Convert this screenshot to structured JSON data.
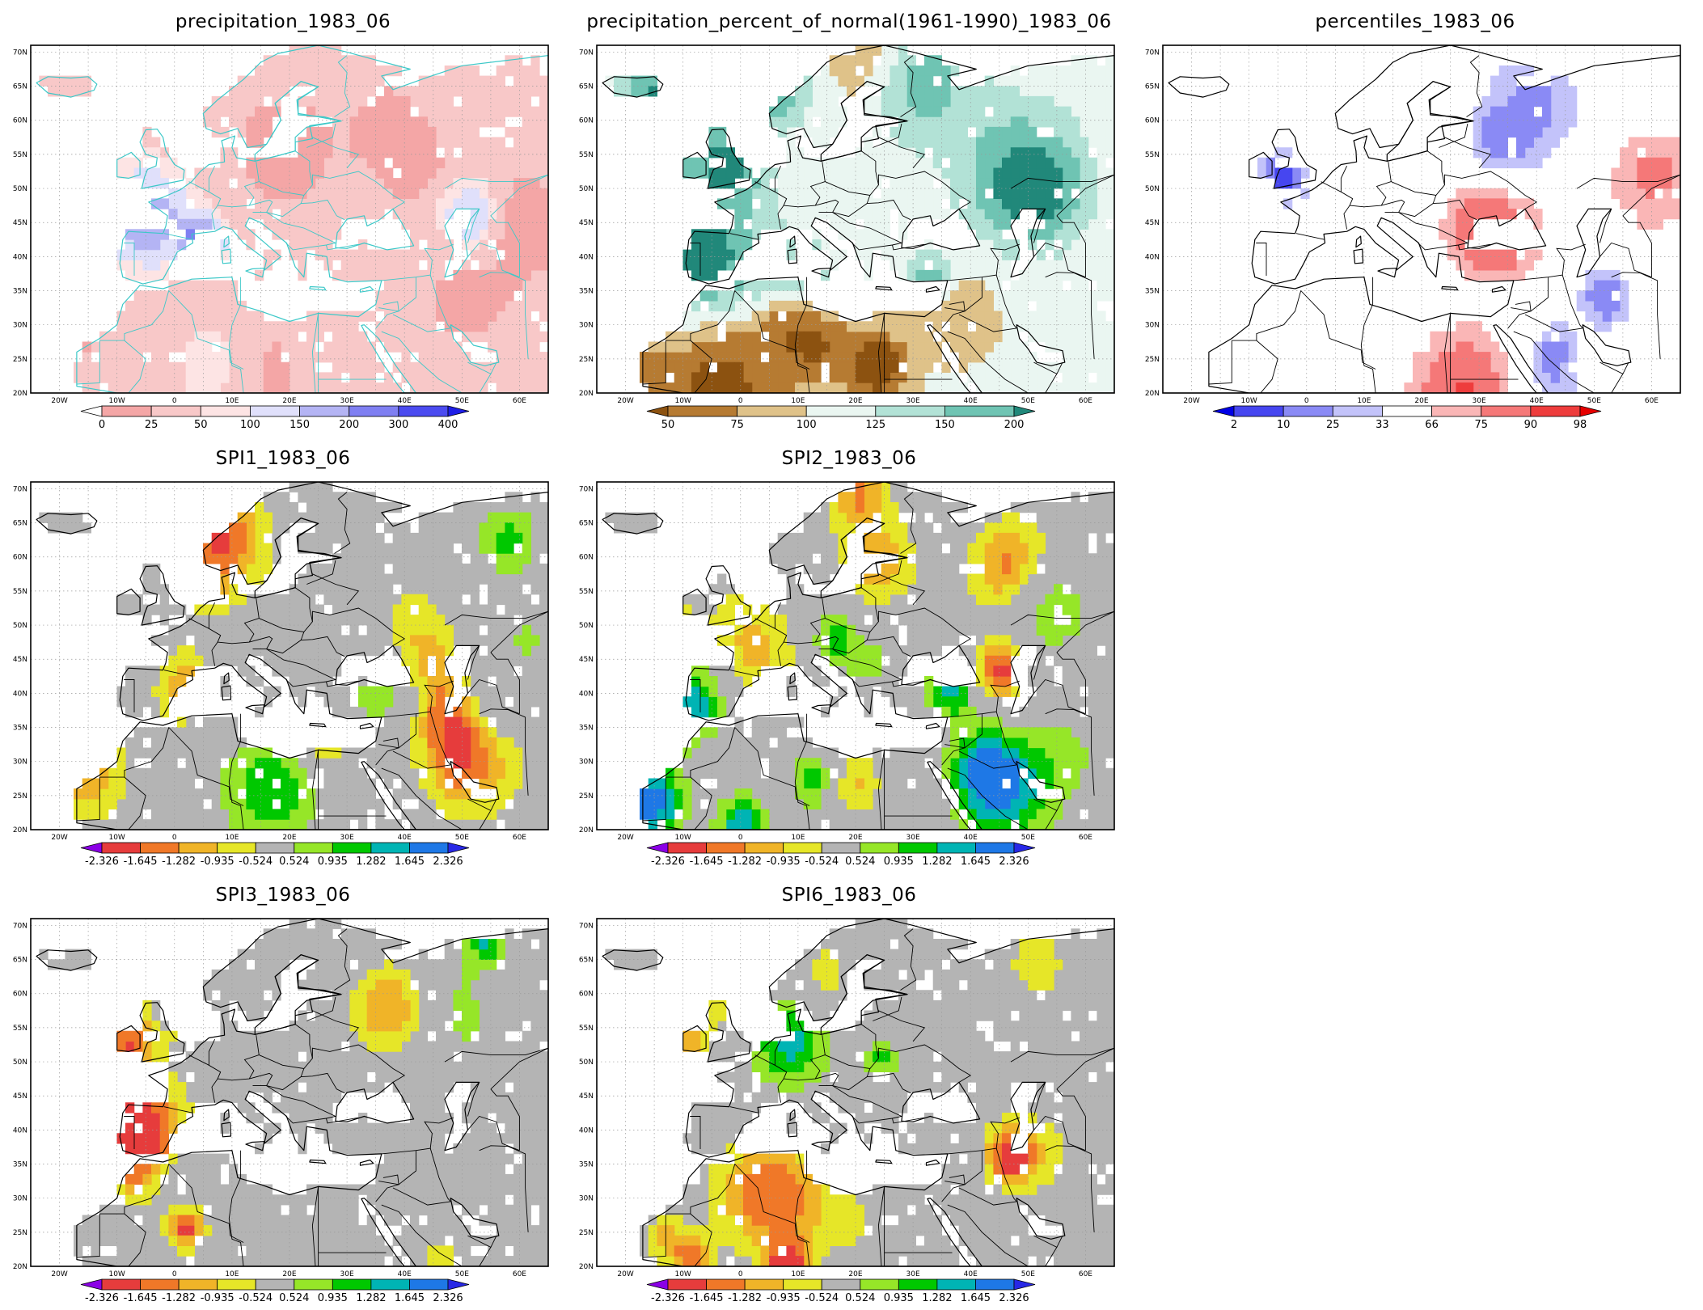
{
  "panels": [
    {
      "id": "precip",
      "title": "precipitation_1983_06",
      "scheme": "precip",
      "colorbar": {
        "labels": [
          "0",
          "25",
          "50",
          "100",
          "150",
          "200",
          "300",
          "400"
        ],
        "colors": [
          "#ffffff",
          "#f4a6a6",
          "#f8c8c8",
          "#fde4e4",
          "#e0e0fb",
          "#b4b4f4",
          "#7f7ff2",
          "#4b4bf0",
          "#1e1ee6"
        ]
      }
    },
    {
      "id": "pct_normal",
      "title": "precipitation_percent_of_normal(1961-1990)_1983_06",
      "scheme": "pctnormal",
      "colorbar": {
        "labels": [
          "50",
          "75",
          "100",
          "125",
          "150",
          "200"
        ],
        "colors": [
          "#8c5210",
          "#b67b32",
          "#dfc289",
          "#eaf6f1",
          "#b2e2d6",
          "#6fc4b3",
          "#21887a"
        ]
      }
    },
    {
      "id": "percentiles",
      "title": "percentiles_1983_06",
      "scheme": "percentiles",
      "colorbar": {
        "labels": [
          "2",
          "10",
          "25",
          "33",
          "66",
          "75",
          "90",
          "98"
        ],
        "colors": [
          "#0000e6",
          "#4646f0",
          "#8a8af5",
          "#c3c3fa",
          "#ffffff",
          "#fab6b6",
          "#f57878",
          "#ee3c3c",
          "#e60000"
        ]
      }
    },
    {
      "id": "spi1",
      "title": "SPI1_1983_06",
      "scheme": "spi",
      "colorbar": {
        "labels": [
          "-2.326",
          "-1.645",
          "-1.282",
          "-0.935",
          "-0.524",
          "0.524",
          "0.935",
          "1.282",
          "1.645",
          "2.326"
        ],
        "colors": [
          "#8b00e6",
          "#e63c3c",
          "#f07828",
          "#f0b428",
          "#e6e628",
          "#b4b4b4",
          "#96e628",
          "#00c800",
          "#00b4b4",
          "#1e78e6",
          "#2828e6"
        ]
      }
    },
    {
      "id": "spi2",
      "title": "SPI2_1983_06",
      "scheme": "spi",
      "colorbar": {
        "labels": [
          "-2.326",
          "-1.645",
          "-1.282",
          "-0.935",
          "-0.524",
          "0.524",
          "0.935",
          "1.282",
          "1.645",
          "2.326"
        ],
        "colors": [
          "#8b00e6",
          "#e63c3c",
          "#f07828",
          "#f0b428",
          "#e6e628",
          "#b4b4b4",
          "#96e628",
          "#00c800",
          "#00b4b4",
          "#1e78e6",
          "#2828e6"
        ]
      }
    },
    {
      "id": "spi3",
      "title": "SPI3_1983_06",
      "scheme": "spi",
      "colorbar": {
        "labels": [
          "-2.326",
          "-1.645",
          "-1.282",
          "-0.935",
          "-0.524",
          "0.524",
          "0.935",
          "1.282",
          "1.645",
          "2.326"
        ],
        "colors": [
          "#8b00e6",
          "#e63c3c",
          "#f07828",
          "#f0b428",
          "#e6e628",
          "#b4b4b4",
          "#96e628",
          "#00c800",
          "#00b4b4",
          "#1e78e6",
          "#2828e6"
        ]
      }
    },
    {
      "id": "spi6",
      "title": "SPI6_1983_06",
      "scheme": "spi",
      "colorbar": {
        "labels": [
          "-2.326",
          "-1.645",
          "-1.282",
          "-0.935",
          "-0.524",
          "0.524",
          "0.935",
          "1.282",
          "1.645",
          "2.326"
        ],
        "colors": [
          "#8b00e6",
          "#e63c3c",
          "#f07828",
          "#f0b428",
          "#e6e628",
          "#b4b4b4",
          "#96e628",
          "#00c800",
          "#00b4b4",
          "#1e78e6",
          "#2828e6"
        ]
      }
    }
  ],
  "axes": {
    "lat_labels": [
      "70N",
      "65N",
      "60N",
      "55N",
      "50N",
      "45N",
      "40N",
      "35N",
      "30N",
      "25N",
      "20N"
    ],
    "lon_labels": [
      "20W",
      "10W",
      "0",
      "10E",
      "20E",
      "30E",
      "40E",
      "50E",
      "60E"
    ],
    "lat_range": [
      20,
      71
    ],
    "lon_range": [
      -25,
      65
    ]
  }
}
